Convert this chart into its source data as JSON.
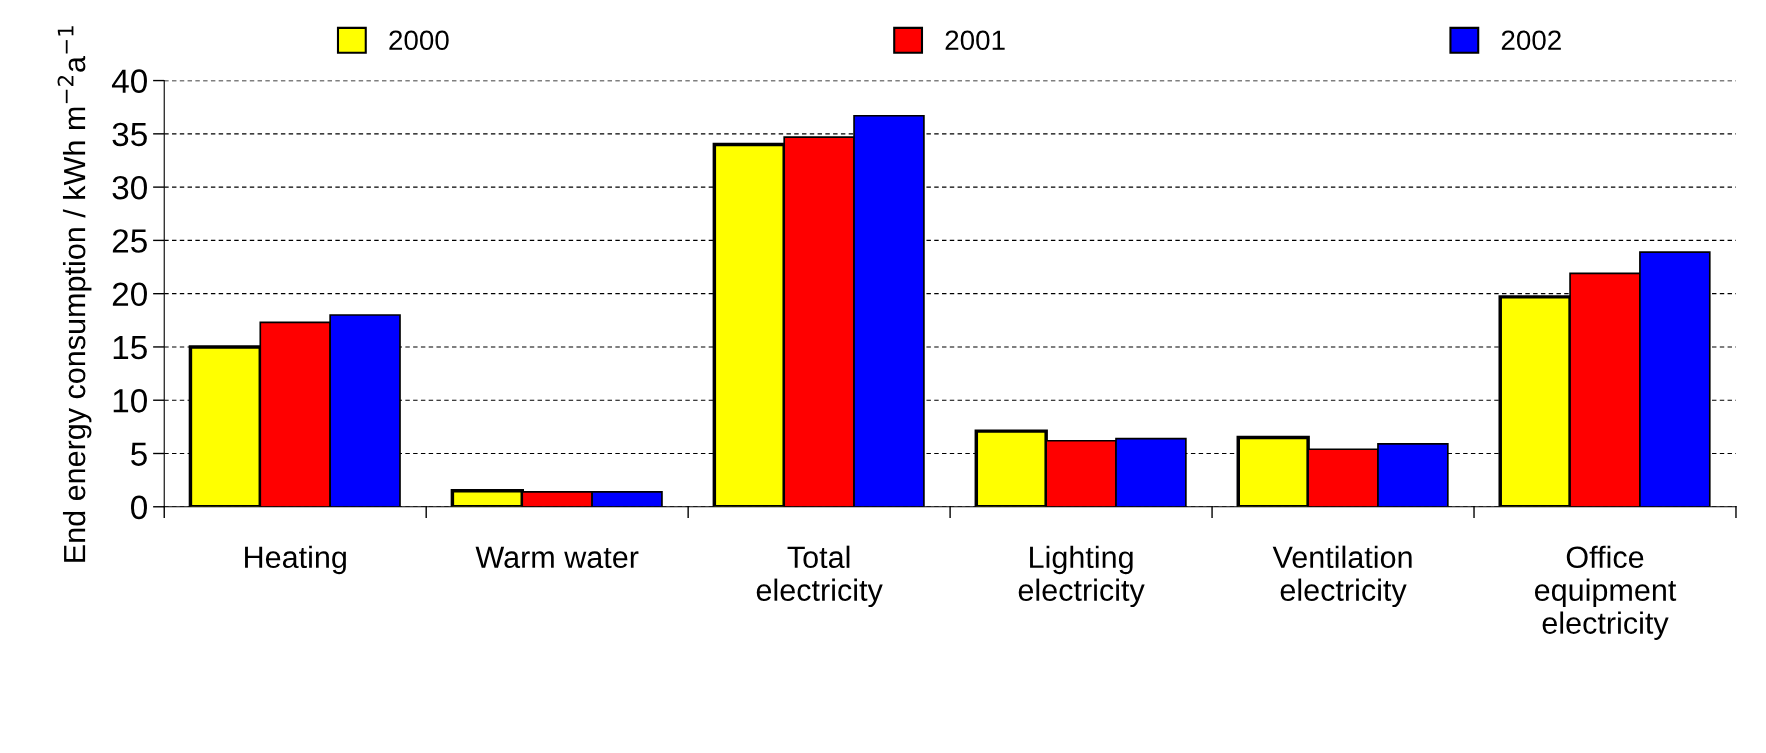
{
  "chart_data": {
    "type": "bar",
    "ylabel": "End energy consumption / kWh m$^{−2}$a$^{−1}$",
    "categories": [
      "Heating",
      "Warm water",
      "Total\nelectricity",
      "Lighting\nelectricity",
      "Ventilation\nelectricity",
      "Office\nequipment\nelectricity"
    ],
    "series": [
      {
        "name": "2000",
        "color": "#ffff00",
        "values": [
          15.0,
          1.5,
          34.0,
          7.1,
          6.5,
          19.7
        ]
      },
      {
        "name": "2001",
        "color": "#ff0000",
        "values": [
          17.3,
          1.4,
          34.7,
          6.2,
          5.4,
          21.9
        ]
      },
      {
        "name": "2002",
        "color": "#0000ff",
        "values": [
          18.0,
          1.4,
          36.7,
          6.4,
          5.9,
          23.9
        ]
      }
    ],
    "ylim": [
      0,
      40
    ],
    "yticks": [
      0,
      5,
      10,
      15,
      20,
      25,
      30,
      35,
      40
    ],
    "grid": "y",
    "legend": "top"
  }
}
